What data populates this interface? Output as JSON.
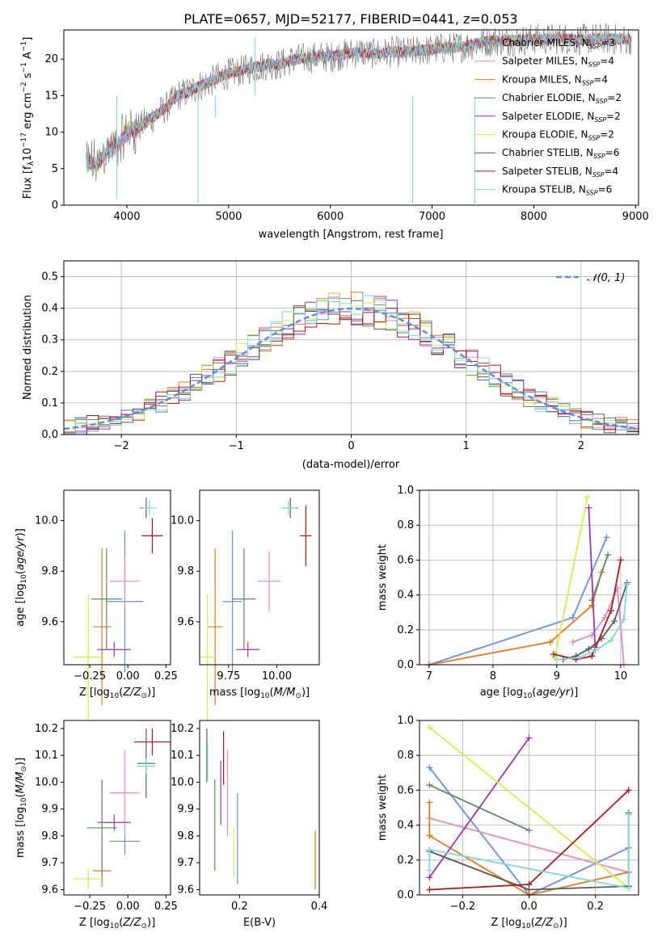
{
  "title": "PLATE=0657, MJD=52177, FIBERID=0441, z=0.053",
  "models": [
    {
      "name": "Chabrier MILES, N$_{SSP}$=3",
      "label_main": "Chabrier MILES, N",
      "sub": "SSP",
      "label_tail": "=3",
      "color": "#6a8fd8"
    },
    {
      "name": "Salpeter MILES, N$_{SSP}$=4",
      "label_main": "Salpeter MILES, N",
      "sub": "SSP",
      "label_tail": "=4",
      "color": "#e48bc0"
    },
    {
      "name": "Kroupa MILES, N$_{SSP}$=4",
      "label_main": "Kroupa MILES, N",
      "sub": "SSP",
      "label_tail": "=4",
      "color": "#e07a20"
    },
    {
      "name": "Chabrier ELODIE, N$_{SSP}$=2",
      "label_main": "Chabrier ELODIE, N",
      "sub": "SSP",
      "label_tail": "=2",
      "color": "#5c8a62"
    },
    {
      "name": "Salpeter ELODIE, N$_{SSP}$=2",
      "label_main": "Salpeter ELODIE, N",
      "sub": "SSP",
      "label_tail": "=2",
      "color": "#9b37b4"
    },
    {
      "name": "Kroupa ELODIE, N$_{SSP}$=2",
      "label_main": "Kroupa ELODIE, N",
      "sub": "SSP",
      "label_tail": "=2",
      "color": "#d4ec4a"
    },
    {
      "name": "Chabrier STELIB, N$_{SSP}$=6",
      "label_main": "Chabrier STELIB, N",
      "sub": "SSP",
      "label_tail": "=6",
      "color": "#5a5a5a"
    },
    {
      "name": "Salpeter STELIB, N$_{SSP}$=4",
      "label_main": "Salpeter STELIB, N",
      "sub": "SSP",
      "label_tail": "=4",
      "color": "#b01818"
    },
    {
      "name": "Kroupa STELIB, N$_{SSP}$=6",
      "label_main": "Kroupa STELIB, N",
      "sub": "SSP",
      "label_tail": "=6",
      "color": "#7ed8de"
    }
  ],
  "chart_data": [
    {
      "id": "spectrum",
      "type": "line",
      "title": "PLATE=0657, MJD=52177, FIBERID=0441, z=0.053",
      "xlabel": "wavelength [Angstrom, rest frame]",
      "ylabel": "Flux [f$_\\lambda$10$^{-17}$ erg cm$^{-2}$ s$^{-1}$ A$^{-1}$]",
      "xlim": [
        3380,
        9030
      ],
      "ylim": [
        0,
        24
      ],
      "xticks": [
        4000,
        5000,
        6000,
        7000,
        8000,
        9000
      ],
      "yticks": [
        0,
        5,
        10,
        15,
        20
      ],
      "grid": false,
      "legend": "top-right",
      "x": [
        3600,
        3700,
        3800,
        3900,
        4000,
        4100,
        4200,
        4300,
        4400,
        4500,
        4600,
        4700,
        4800,
        4900,
        5000,
        5100,
        5200,
        5300,
        5400,
        5500,
        5600,
        5700,
        5800,
        5900,
        6000,
        6100,
        6200,
        6300,
        6400,
        6500,
        6600,
        6700,
        6800,
        6900,
        7000,
        7100,
        7200,
        7300,
        7400,
        7500,
        7600,
        7700,
        7800,
        7900,
        8000,
        8100,
        8200,
        8300,
        8400,
        8500,
        8600,
        8700,
        8800,
        8900
      ],
      "y": [
        6.0,
        5.5,
        7.5,
        8.0,
        10.0,
        10.5,
        11.5,
        12.5,
        13.5,
        15.0,
        15.5,
        16.2,
        16.8,
        17.5,
        18.0,
        18.3,
        18.7,
        19.0,
        19.3,
        19.2,
        19.8,
        20.0,
        20.2,
        20.3,
        20.3,
        20.6,
        20.8,
        21.0,
        20.7,
        20.8,
        21.0,
        20.9,
        21.0,
        21.2,
        21.3,
        21.5,
        21.6,
        21.7,
        22.0,
        22.3,
        22.5,
        22.5,
        22.6,
        22.6,
        22.7,
        22.7,
        22.8,
        22.8,
        22.7,
        22.7,
        22.8,
        22.8,
        22.7,
        22.7
      ]
    },
    {
      "id": "residuals",
      "type": "histogram",
      "xlabel": "(data-model)/error",
      "ylabel": "Normed distribution",
      "xlim": [
        -2.5,
        2.5
      ],
      "ylim": [
        0,
        0.55
      ],
      "xticks": [
        -2,
        -1,
        0,
        1,
        2
      ],
      "yticks": [
        0.0,
        0.1,
        0.2,
        0.3,
        0.4,
        0.5
      ],
      "grid": true,
      "legend": "top-right",
      "reference_label": "$\\mathcal{N}(0,1)$",
      "bin_width": 0.1
    },
    {
      "id": "z-age",
      "type": "errorbar",
      "xlabel": "Z [log$_{10}$(Z/Z$_\\odot$)]",
      "ylabel": "age  [log$_{10}$(age/yr)]",
      "xlim": [
        -0.42,
        0.28
      ],
      "ylim": [
        9.43,
        10.12
      ],
      "xticks": [
        -0.25,
        0.0,
        0.25
      ],
      "yticks": [
        9.6,
        9.8,
        10.0
      ],
      "points": [
        {
          "x": -0.02,
          "y": 9.68,
          "xerr": 0.12,
          "yerr": 0.28
        },
        {
          "x": -0.02,
          "y": 9.76,
          "xerr": 0.1,
          "yerr": 0.1
        },
        {
          "x": -0.17,
          "y": 9.58,
          "xerr": 0.06,
          "yerr": 0.31
        },
        {
          "x": -0.14,
          "y": 9.69,
          "xerr": 0.1,
          "yerr": 0.2
        },
        {
          "x": -0.09,
          "y": 9.49,
          "xerr": 0.11,
          "yerr": 0.03
        },
        {
          "x": -0.26,
          "y": 9.46,
          "xerr": 0.1,
          "yerr": 0.25
        },
        {
          "x": 0.12,
          "y": 10.05,
          "xerr": 0.04,
          "yerr": 0.04
        },
        {
          "x": 0.16,
          "y": 9.94,
          "xerr": 0.07,
          "yerr": 0.07
        },
        {
          "x": 0.14,
          "y": 10.05,
          "xerr": 0.05,
          "yerr": 0.03
        }
      ]
    },
    {
      "id": "mass-age",
      "type": "errorbar",
      "xlabel": "mass [log$_{10}$(M/M$_\\odot$)]",
      "ylabel": "",
      "xlim": [
        9.6,
        10.22
      ],
      "ylim": [
        9.43,
        10.12
      ],
      "xticks": [
        9.75,
        10.0
      ],
      "yticks": [
        9.6,
        9.8,
        10.0
      ],
      "points": [
        {
          "x": 9.77,
          "y": 9.68,
          "xerr": 0.05,
          "yerr": 0.28
        },
        {
          "x": 9.96,
          "y": 9.76,
          "xerr": 0.06,
          "yerr": 0.12
        },
        {
          "x": 9.68,
          "y": 9.58,
          "xerr": 0.04,
          "yerr": 0.31
        },
        {
          "x": 9.83,
          "y": 9.69,
          "xerr": 0.06,
          "yerr": 0.2
        },
        {
          "x": 9.85,
          "y": 9.49,
          "xerr": 0.06,
          "yerr": 0.03
        },
        {
          "x": 9.64,
          "y": 9.46,
          "xerr": 0.04,
          "yerr": 0.25
        },
        {
          "x": 10.07,
          "y": 10.05,
          "xerr": 0.04,
          "yerr": 0.04
        },
        {
          "x": 10.15,
          "y": 9.94,
          "xerr": 0.03,
          "yerr": 0.12
        },
        {
          "x": 10.06,
          "y": 10.05,
          "xerr": 0.04,
          "yerr": 0.03
        }
      ]
    },
    {
      "id": "age-weight",
      "type": "line",
      "xlabel": "age  [log$_{10}$(age/yr)]",
      "ylabel": "mass weight",
      "xlim": [
        6.85,
        10.28
      ],
      "ylim": [
        0,
        1
      ],
      "xticks": [
        7,
        8,
        9,
        10
      ],
      "yticks": [
        0.0,
        0.2,
        0.4,
        0.6,
        0.8,
        1.0
      ],
      "grid": true,
      "series": [
        {
          "x": [
            7.0,
            9.25,
            9.78
          ],
          "y": [
            0.0,
            0.27,
            0.73
          ]
        },
        {
          "x": [
            9.25,
            9.55,
            9.75,
            9.95,
            10.05
          ],
          "y": [
            0.13,
            0.17,
            0.27,
            0.44,
            0.0
          ]
        },
        {
          "x": [
            7.0,
            8.9,
            9.55,
            9.7
          ],
          "y": [
            0.0,
            0.13,
            0.34,
            0.53
          ]
        },
        {
          "x": [
            9.55,
            9.8
          ],
          "y": [
            0.37,
            0.63
          ]
        },
        {
          "x": [
            9.5,
            9.6
          ],
          "y": [
            0.9,
            0.1
          ]
        },
        {
          "x": [
            8.97,
            9.48
          ],
          "y": [
            0.04,
            0.96
          ]
        },
        {
          "x": [
            9.1,
            9.3,
            9.5,
            9.7,
            9.9,
            10.1
          ],
          "y": [
            0.03,
            0.05,
            0.09,
            0.15,
            0.25,
            0.47
          ]
        },
        {
          "x": [
            8.95,
            9.3,
            9.55,
            9.85,
            10.0
          ],
          "y": [
            0.06,
            0.03,
            0.05,
            0.31,
            0.6
          ]
        },
        {
          "x": [
            9.0,
            9.35,
            9.6,
            9.85,
            10.05,
            10.1
          ],
          "y": [
            0.03,
            0.04,
            0.08,
            0.14,
            0.26,
            0.46
          ]
        }
      ]
    },
    {
      "id": "z-mass",
      "type": "errorbar",
      "xlabel": "Z [log$_{10}$(Z/Z$_\\odot$)]",
      "ylabel": "mass [log$_{10}$(M/M$_\\odot$)]",
      "xlim": [
        -0.42,
        0.28
      ],
      "ylim": [
        9.58,
        10.23
      ],
      "xticks": [
        -0.25,
        0.0,
        0.25
      ],
      "yticks": [
        9.6,
        9.7,
        9.8,
        9.9,
        10.0,
        10.1,
        10.2
      ],
      "points": [
        {
          "x": -0.02,
          "y": 9.78,
          "xerr": 0.1,
          "yerr": 0.05
        },
        {
          "x": -0.02,
          "y": 9.96,
          "xerr": 0.1,
          "yerr": 0.16
        },
        {
          "x": -0.17,
          "y": 9.67,
          "xerr": 0.06,
          "yerr": 0.06
        },
        {
          "x": -0.17,
          "y": 9.83,
          "xerr": 0.1,
          "yerr": 0.18
        },
        {
          "x": -0.09,
          "y": 9.85,
          "xerr": 0.11,
          "yerr": 0.03
        },
        {
          "x": -0.26,
          "y": 9.64,
          "xerr": 0.1,
          "yerr": 0.04
        },
        {
          "x": 0.12,
          "y": 10.07,
          "xerr": 0.06,
          "yerr": 0.13
        },
        {
          "x": 0.16,
          "y": 10.15,
          "xerr": 0.12,
          "yerr": 0.05
        },
        {
          "x": 0.12,
          "y": 10.06,
          "xerr": 0.06,
          "yerr": 0.03
        }
      ]
    },
    {
      "id": "ebv-mass",
      "type": "errorbar",
      "xlabel": "E(B-V)",
      "ylabel": "",
      "xlim": [
        0.1,
        0.4
      ],
      "ylim": [
        9.58,
        10.23
      ],
      "xticks": [
        0.2,
        0.4
      ],
      "yticks": [
        9.6,
        9.7,
        9.8,
        9.9,
        10.0,
        10.1,
        10.2
      ],
      "points": [
        {
          "x": 0.195,
          "y": 9.79,
          "xerr": 0,
          "yerr": 0.17
        },
        {
          "x": 0.17,
          "y": 9.96,
          "xerr": 0,
          "yerr": 0.16
        },
        {
          "x": 0.39,
          "y": 9.71,
          "xerr": 0,
          "yerr": 0.11
        },
        {
          "x": 0.138,
          "y": 9.84,
          "xerr": 0,
          "yerr": 0.17
        },
        {
          "x": 0.153,
          "y": 9.96,
          "xerr": 0,
          "yerr": 0.12
        },
        {
          "x": 0.186,
          "y": 9.74,
          "xerr": 0,
          "yerr": 0.09
        },
        {
          "x": 0.118,
          "y": 10.1,
          "xerr": 0,
          "yerr": 0.1
        },
        {
          "x": 0.16,
          "y": 10.09,
          "xerr": 0,
          "yerr": 0.1
        },
        {
          "x": 0.12,
          "y": 10.08,
          "xerr": 0,
          "yerr": 0.07
        }
      ]
    },
    {
      "id": "z-weight",
      "type": "line",
      "xlabel": "Z [log$_{10}$(Z/Z$_\\odot$)]",
      "ylabel": "mass weight",
      "xlim": [
        -0.33,
        0.33
      ],
      "ylim": [
        0,
        1
      ],
      "xticks": [
        -0.2,
        0.0,
        0.2
      ],
      "yticks": [
        0.0,
        0.2,
        0.4,
        0.6,
        0.8,
        1.0
      ],
      "grid": true,
      "series": [
        {
          "x": [
            -0.3,
            0.0,
            0.3
          ],
          "y": [
            0.73,
            0.0,
            0.27
          ]
        },
        {
          "x": [
            -0.3,
            0.3
          ],
          "y": [
            0.44,
            0.13
          ]
        },
        {
          "x": [
            -0.3,
            -0.3,
            0.0,
            0.3
          ],
          "y": [
            0.53,
            0.34,
            0.0,
            0.13
          ]
        },
        {
          "x": [
            -0.3,
            0.0
          ],
          "y": [
            0.63,
            0.37
          ]
        },
        {
          "x": [
            -0.3,
            0.0
          ],
          "y": [
            0.1,
            0.9
          ]
        },
        {
          "x": [
            -0.3,
            0.3
          ],
          "y": [
            0.96,
            0.04
          ]
        },
        {
          "x": [
            -0.3,
            0.0,
            0.3,
            0.3
          ],
          "y": [
            0.25,
            0.03,
            0.05,
            0.47
          ]
        },
        {
          "x": [
            -0.3,
            0.0,
            0.3
          ],
          "y": [
            0.03,
            0.06,
            0.6
          ]
        },
        {
          "x": [
            -0.3,
            -0.3,
            0.3,
            0.3
          ],
          "y": [
            0.14,
            0.26,
            0.04,
            0.46
          ]
        }
      ]
    }
  ]
}
